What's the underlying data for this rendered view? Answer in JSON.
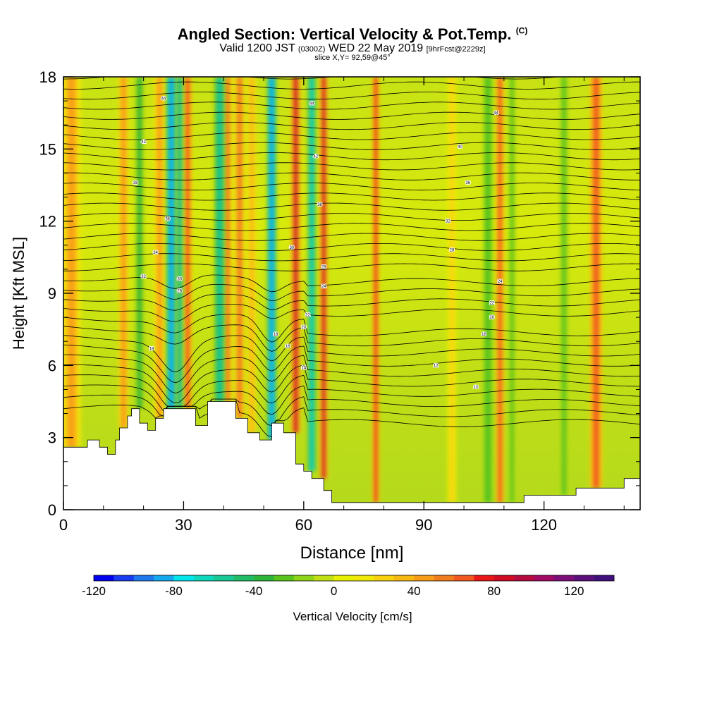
{
  "header": {
    "title": "Angled Section: Vertical Velocity & Pot.Temp.",
    "title_suffix": "(C)",
    "subtitle_pre": "Valid 1200 JST",
    "subtitle_small1": "(0300Z)",
    "subtitle_mid": "WED 22 May 2019",
    "subtitle_small2": "[9hrFcst@2229z]",
    "slice": "slice X,Y= 92,59@45°"
  },
  "chart_data": {
    "type": "heatmap",
    "title": "Angled Section: Vertical Velocity & Pot.Temp.",
    "xlabel": "Distance [nm]",
    "ylabel": "Height [Kft MSL]",
    "xlim": [
      0,
      144
    ],
    "ylim": [
      0,
      18
    ],
    "x_ticks": [
      0,
      30,
      60,
      90,
      120
    ],
    "y_ticks": [
      0,
      3,
      6,
      9,
      12,
      15,
      18
    ],
    "colorbar": {
      "label": "Vertical Velocity [cm/s]",
      "min": -120,
      "max": 140,
      "step": 10,
      "tick_labels": [
        -120,
        -80,
        -40,
        0,
        40,
        80,
        120
      ],
      "colors": [
        "#0000ee",
        "#1a3cf0",
        "#1f78ee",
        "#14a8ee",
        "#00e4ec",
        "#0ed8bc",
        "#18c896",
        "#20bc66",
        "#2cb43a",
        "#58c41c",
        "#8ed418",
        "#c0e014",
        "#e8f000",
        "#f0e808",
        "#f8d010",
        "#f8b814",
        "#f89c18",
        "#f07c1c",
        "#f05820",
        "#e81818",
        "#d00c24",
        "#b40c40",
        "#a00c64",
        "#7c1078",
        "#5c107c",
        "#40107c"
      ]
    },
    "terrain_kft": [
      [
        0,
        2.6
      ],
      [
        6,
        2.9
      ],
      [
        9,
        2.6
      ],
      [
        11,
        2.3
      ],
      [
        13,
        2.9
      ],
      [
        14,
        3.4
      ],
      [
        16,
        3.9
      ],
      [
        17,
        4.2
      ],
      [
        19,
        3.6
      ],
      [
        21,
        3.3
      ],
      [
        23,
        3.8
      ],
      [
        25,
        4.2
      ],
      [
        31,
        4.2
      ],
      [
        33,
        3.5
      ],
      [
        36,
        4.5
      ],
      [
        41,
        4.5
      ],
      [
        43,
        3.8
      ],
      [
        46,
        3.2
      ],
      [
        49,
        2.9
      ],
      [
        52,
        3.6
      ],
      [
        55,
        3.2
      ],
      [
        58,
        1.9
      ],
      [
        60,
        1.6
      ],
      [
        62,
        1.3
      ],
      [
        65,
        0.8
      ],
      [
        67,
        0.3
      ],
      [
        72,
        0.3
      ],
      [
        100,
        0.3
      ],
      [
        113,
        0.3
      ],
      [
        115,
        0.6
      ],
      [
        124,
        0.6
      ],
      [
        128,
        0.9
      ],
      [
        138,
        0.9
      ],
      [
        140,
        1.3
      ],
      [
        144,
        1.3
      ]
    ],
    "updraft_bands": [
      {
        "x": 2,
        "w": 3,
        "v": 40
      },
      {
        "x": 15,
        "w": 1.6,
        "v": 45
      },
      {
        "x": 24,
        "w": 1.8,
        "v": 40
      },
      {
        "x": 31,
        "w": 1.4,
        "v": 60
      },
      {
        "x": 41,
        "w": 1.6,
        "v": 50
      },
      {
        "x": 44,
        "w": 1.8,
        "v": 55
      },
      {
        "x": 47,
        "w": 1.4,
        "v": 35
      },
      {
        "x": 58,
        "w": 1.6,
        "v": 85
      },
      {
        "x": 65,
        "w": 1.4,
        "v": 80
      },
      {
        "x": 78,
        "w": 1.2,
        "v": 70
      },
      {
        "x": 97,
        "w": 1.4,
        "v": 25
      },
      {
        "x": 109,
        "w": 1.3,
        "v": 60
      },
      {
        "x": 133,
        "w": 2.0,
        "v": 60
      }
    ],
    "downdraft_bands": [
      {
        "x": 19,
        "w": 1.2,
        "v": -40
      },
      {
        "x": 27,
        "w": 1.6,
        "v": -90
      },
      {
        "x": 29,
        "w": 1.2,
        "v": -55
      },
      {
        "x": 39,
        "w": 1.6,
        "v": -60
      },
      {
        "x": 52,
        "w": 1.4,
        "v": -90
      },
      {
        "x": 62,
        "w": 1.3,
        "v": -65
      },
      {
        "x": 106,
        "w": 1.4,
        "v": -30
      },
      {
        "x": 112,
        "w": 1.2,
        "v": -25
      },
      {
        "x": 125,
        "w": 1.5,
        "v": -25
      }
    ],
    "isentrope_labels": [
      {
        "x": 25,
        "y": 17.1,
        "text": "44"
      },
      {
        "x": 62,
        "y": 16.9,
        "text": "44"
      },
      {
        "x": 108,
        "y": 16.5,
        "text": "44"
      },
      {
        "x": 20,
        "y": 15.3,
        "text": "42"
      },
      {
        "x": 63,
        "y": 14.7,
        "text": "42"
      },
      {
        "x": 99,
        "y": 15.1,
        "text": "40"
      },
      {
        "x": 18,
        "y": 13.6,
        "text": "38"
      },
      {
        "x": 64,
        "y": 12.7,
        "text": "38"
      },
      {
        "x": 101,
        "y": 13.6,
        "text": "36"
      },
      {
        "x": 26,
        "y": 12.1,
        "text": "36"
      },
      {
        "x": 96,
        "y": 12.0,
        "text": "32"
      },
      {
        "x": 23,
        "y": 10.7,
        "text": "34"
      },
      {
        "x": 57,
        "y": 10.9,
        "text": "30"
      },
      {
        "x": 97,
        "y": 10.8,
        "text": "28"
      },
      {
        "x": 20,
        "y": 9.7,
        "text": "32"
      },
      {
        "x": 29,
        "y": 9.6,
        "text": "30"
      },
      {
        "x": 65,
        "y": 10.1,
        "text": "28"
      },
      {
        "x": 29,
        "y": 9.1,
        "text": "28"
      },
      {
        "x": 65,
        "y": 9.3,
        "text": "24"
      },
      {
        "x": 109,
        "y": 9.5,
        "text": "24"
      },
      {
        "x": 61,
        "y": 8.1,
        "text": "22"
      },
      {
        "x": 107,
        "y": 8.6,
        "text": "22"
      },
      {
        "x": 60,
        "y": 7.6,
        "text": "20"
      },
      {
        "x": 107,
        "y": 8.0,
        "text": "20"
      },
      {
        "x": 53,
        "y": 7.3,
        "text": "18"
      },
      {
        "x": 105,
        "y": 7.3,
        "text": "18"
      },
      {
        "x": 56,
        "y": 6.8,
        "text": "16"
      },
      {
        "x": 22,
        "y": 6.7,
        "text": "18"
      },
      {
        "x": 60,
        "y": 5.9,
        "text": "14"
      },
      {
        "x": 93,
        "y": 6.0,
        "text": "12"
      },
      {
        "x": 103,
        "y": 5.1,
        "text": "10"
      }
    ]
  }
}
